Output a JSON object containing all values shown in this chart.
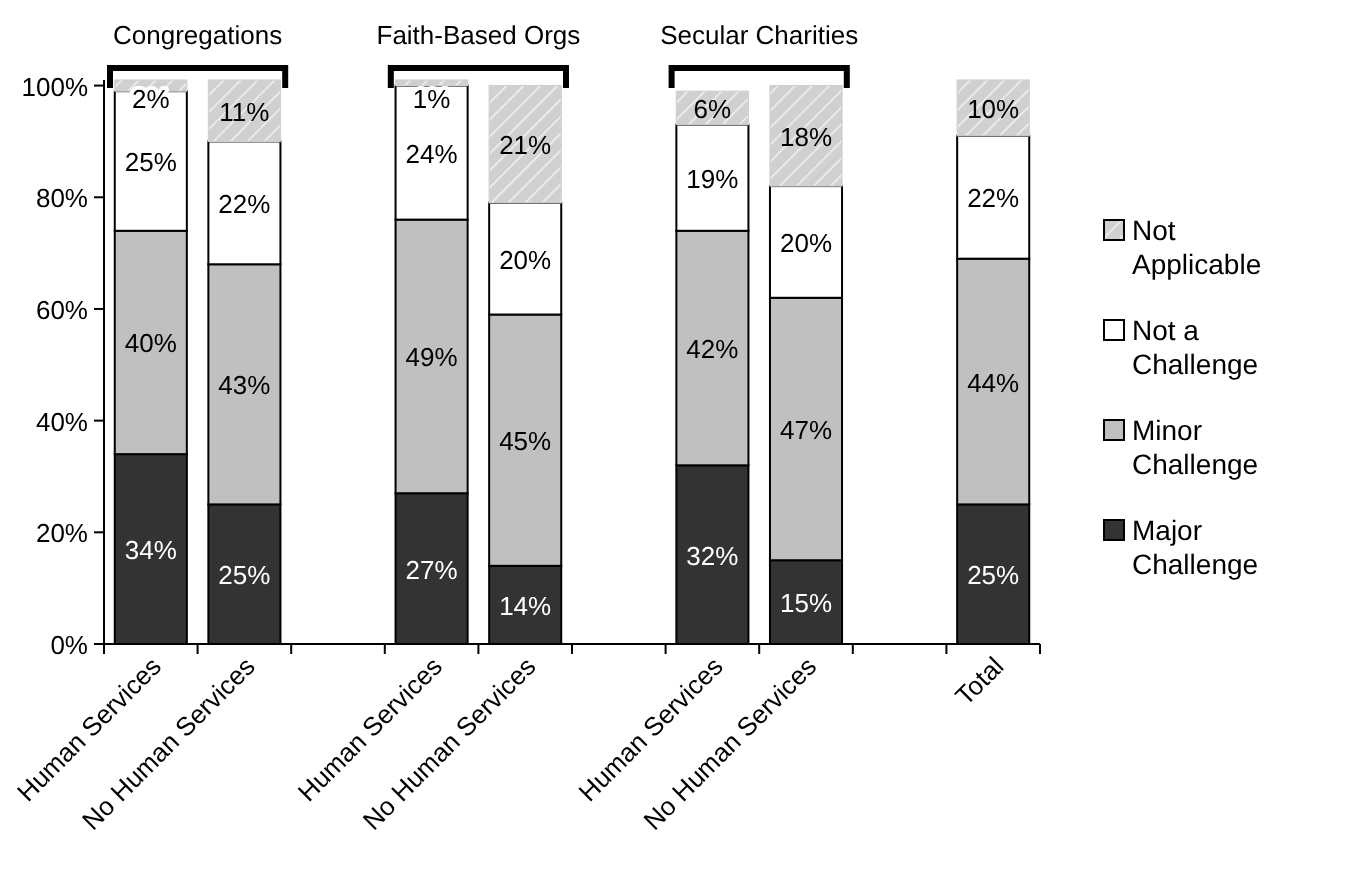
{
  "chart_data": {
    "type": "bar",
    "stacked": true,
    "categories": [
      "Human Services",
      "No Human Services",
      null,
      "Human Services",
      "No Human Services",
      null,
      "Human Services",
      "No Human Services",
      null,
      "Total"
    ],
    "series": [
      {
        "name": "Major Challenge",
        "color": "#333333",
        "values": [
          34,
          25,
          null,
          27,
          14,
          null,
          32,
          15,
          null,
          25
        ],
        "value_labels": [
          "34%",
          "25%",
          null,
          "27%",
          "14%",
          null,
          "32%",
          "15%",
          null,
          "25%"
        ]
      },
      {
        "name": "Minor Challenge",
        "color": "#c0c0c0",
        "values": [
          40,
          43,
          null,
          49,
          45,
          null,
          42,
          47,
          null,
          44
        ],
        "value_labels": [
          "40%",
          "43%",
          null,
          "49%",
          "45%",
          null,
          "42%",
          "47%",
          null,
          "44%"
        ]
      },
      {
        "name": "Not a Challenge",
        "color": "#ffffff",
        "values": [
          25,
          22,
          null,
          24,
          20,
          null,
          19,
          20,
          null,
          22
        ],
        "value_labels": [
          "25%",
          "22%",
          null,
          "24%",
          "20%",
          null,
          "19%",
          "20%",
          null,
          "22%"
        ]
      },
      {
        "name": "Not Applicable",
        "color": "#d0d0d0",
        "values": [
          2,
          11,
          null,
          1,
          21,
          null,
          6,
          18,
          null,
          10
        ],
        "value_labels": [
          "2%",
          "11%",
          null,
          "1%",
          "21%",
          null,
          "6%",
          "18%",
          null,
          "10%"
        ]
      }
    ],
    "ylim": [
      0,
      101
    ],
    "yticks": [
      {
        "value": 0,
        "label": "0%"
      },
      {
        "value": 20,
        "label": "20%"
      },
      {
        "value": 40,
        "label": "40%"
      },
      {
        "value": 60,
        "label": "60%"
      },
      {
        "value": 80,
        "label": "80%"
      },
      {
        "value": 100,
        "label": "100%"
      }
    ],
    "annotations": [
      "Congregations",
      "Faith-Based Orgs",
      "Secular Charities"
    ],
    "legend": "right",
    "grid": false
  }
}
